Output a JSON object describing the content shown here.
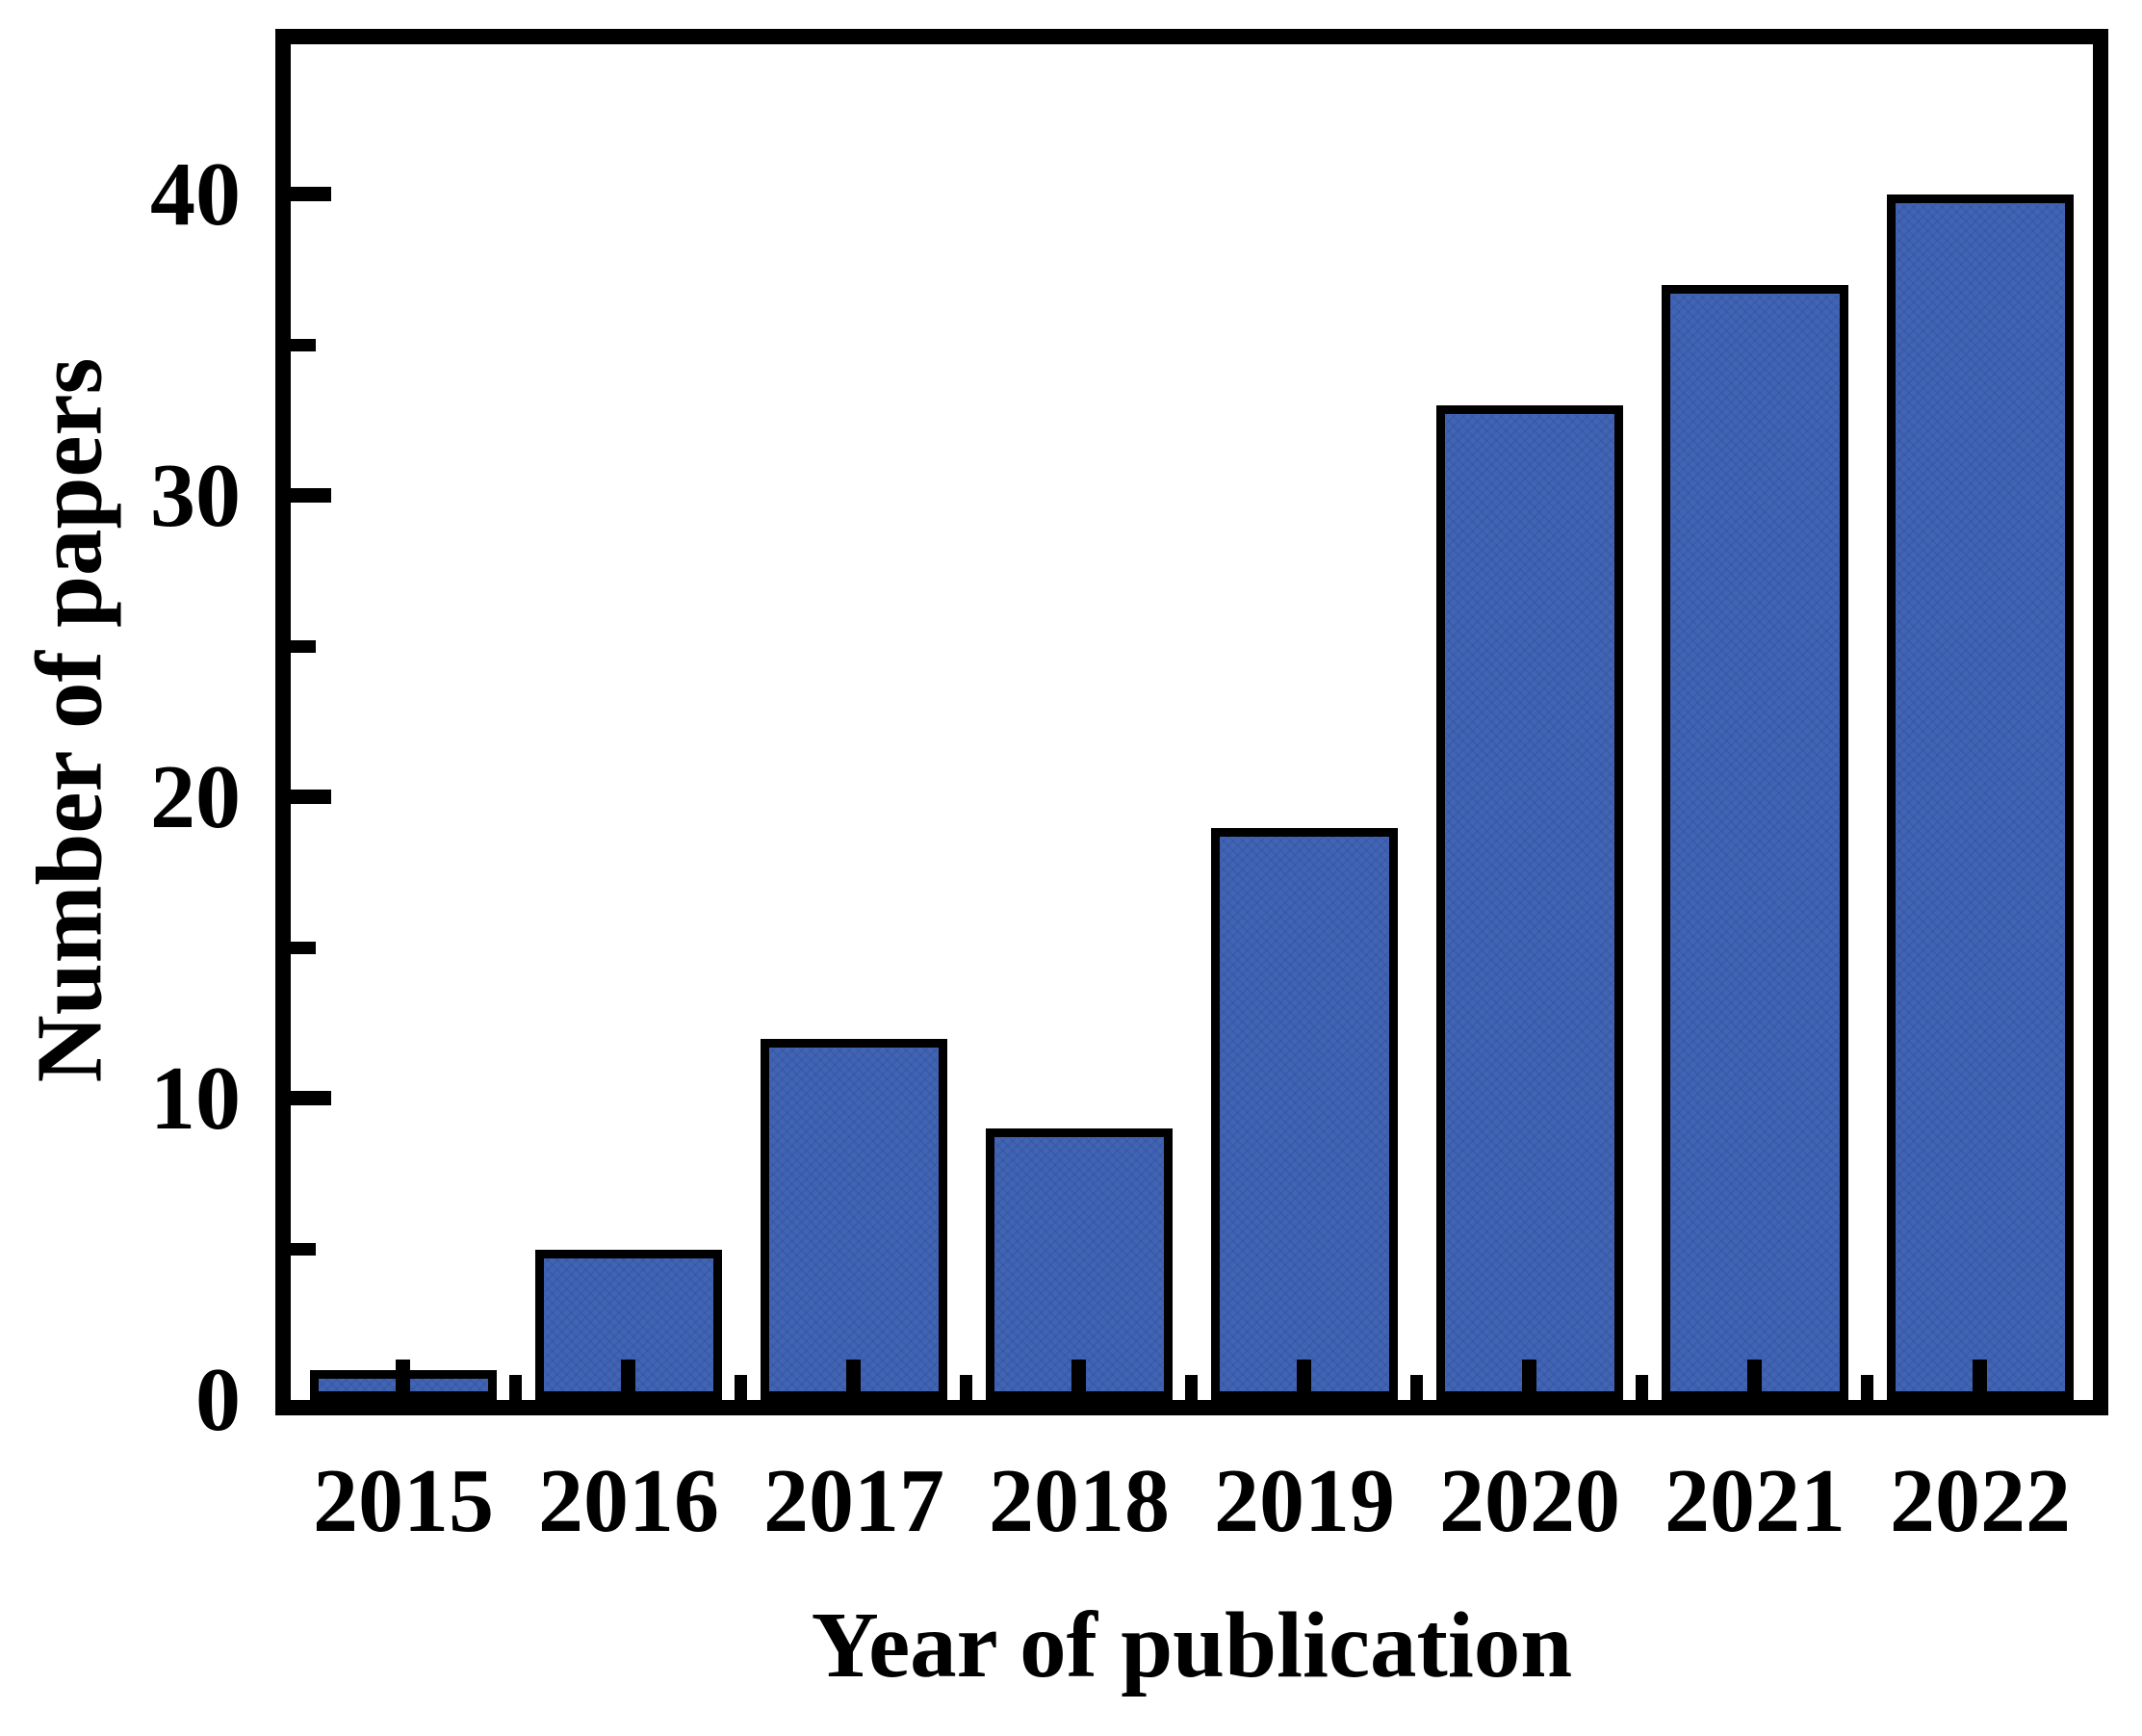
{
  "chart_data": {
    "type": "bar",
    "categories": [
      "2015",
      "2016",
      "2017",
      "2018",
      "2019",
      "2020",
      "2021",
      "2022"
    ],
    "values": [
      1,
      5,
      12,
      9,
      19,
      33,
      37,
      40
    ],
    "title": "",
    "xlabel": "Year of publication",
    "ylabel": "Number of papers",
    "ylim": [
      0,
      45
    ],
    "yticks_major": [
      0,
      10,
      20,
      30,
      40
    ],
    "yticks_minor": [
      5,
      15,
      25,
      35
    ],
    "grid": false,
    "legend": false,
    "colors": {
      "bar_fill": "#4164b4",
      "bar_texture": "rgba(15,35,90,0.10)",
      "bar_border": "#000000",
      "frame": "#000000",
      "text": "#000000",
      "background": "#ffffff"
    }
  }
}
